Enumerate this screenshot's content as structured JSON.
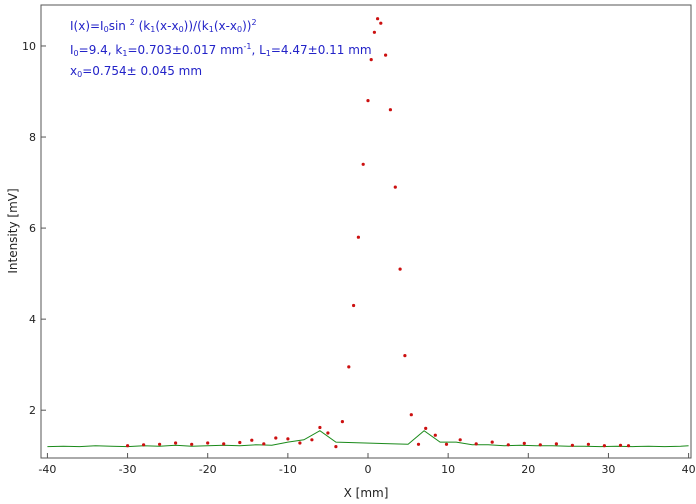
{
  "annotations": {
    "formula": {
      "p1": "I(x)=I",
      "s1": "0",
      "p2": "sin ",
      "s2": "2",
      "p3": " (k",
      "s3": "1",
      "p4": "(x-x",
      "s4": "0",
      "p5": "))/(k",
      "s5": "1",
      "p6": "(x-x",
      "s6": "0",
      "p7": "))",
      "s7": "2"
    },
    "params": {
      "p1": "I",
      "s1": "0",
      "p2": "=9.4,  k",
      "s2": "1",
      "p3": "=0.703±0.017 mm",
      "s3": "-1",
      "p4": ",   L",
      "s4": "1",
      "p5": "=4.47±0.11 mm"
    },
    "offset": {
      "p1": "x",
      "s1": "0",
      "p2": "=0.754±  0.045 mm"
    }
  },
  "chart_data": {
    "type": "scatter",
    "title": "",
    "xlabel": "X [mm]",
    "ylabel": "Intensity [mV]",
    "xlim": [
      -40.8,
      40.3
    ],
    "ylim": [
      0.95,
      10.9
    ],
    "x_ticks": [
      -40,
      -30,
      -20,
      -10,
      0,
      10,
      20,
      30,
      40
    ],
    "y_ticks": [
      2,
      4,
      6,
      8,
      10
    ],
    "grid": false,
    "legend": "none",
    "series": [
      {
        "kind": "line",
        "color": "#1a8a1a",
        "x": [
          -40,
          -38,
          -36,
          -34,
          -32,
          -30,
          -28,
          -26,
          -24,
          -22,
          -20,
          -18,
          -16,
          -14,
          -12,
          -10,
          -8,
          -6,
          -4,
          5,
          7,
          9,
          11,
          13,
          15,
          17,
          19,
          21,
          23,
          25,
          27,
          29,
          31,
          33,
          35,
          37,
          39,
          40
        ],
        "y": [
          1.2,
          1.21,
          1.2,
          1.22,
          1.21,
          1.2,
          1.22,
          1.21,
          1.23,
          1.21,
          1.22,
          1.23,
          1.22,
          1.24,
          1.23,
          1.3,
          1.35,
          1.55,
          1.3,
          1.25,
          1.55,
          1.3,
          1.3,
          1.24,
          1.24,
          1.22,
          1.23,
          1.22,
          1.22,
          1.21,
          1.21,
          1.2,
          1.21,
          1.2,
          1.21,
          1.2,
          1.21,
          1.22
        ]
      },
      {
        "kind": "points",
        "color": "#cc1010",
        "x": [
          -30,
          -28,
          -26,
          -24,
          -22,
          -20,
          -18,
          -16,
          -14.5,
          -13,
          -11.5,
          -10,
          -8.5,
          -7,
          -6,
          -5,
          -4,
          -3.2,
          -2.4,
          -1.8,
          -1.2,
          -0.6,
          0,
          0.4,
          0.8,
          1.2,
          1.6,
          2.2,
          2.8,
          3.4,
          4,
          4.6,
          5.4,
          6.3,
          7.2,
          8.4,
          9.8,
          11.5,
          13.5,
          15.5,
          17.5,
          19.5,
          21.5,
          23.5,
          25.5,
          27.5,
          29.5,
          31.5,
          32.5
        ],
        "y": [
          1.22,
          1.24,
          1.25,
          1.28,
          1.25,
          1.28,
          1.26,
          1.29,
          1.34,
          1.26,
          1.39,
          1.37,
          1.28,
          1.35,
          1.62,
          1.5,
          1.2,
          1.75,
          2.95,
          4.3,
          5.8,
          7.4,
          8.8,
          9.7,
          10.3,
          10.6,
          10.5,
          9.8,
          8.6,
          6.9,
          5.1,
          3.2,
          1.9,
          1.25,
          1.6,
          1.45,
          1.25,
          1.35,
          1.26,
          1.3,
          1.24,
          1.27,
          1.24,
          1.26,
          1.23,
          1.25,
          1.22,
          1.23,
          1.22
        ]
      }
    ]
  }
}
